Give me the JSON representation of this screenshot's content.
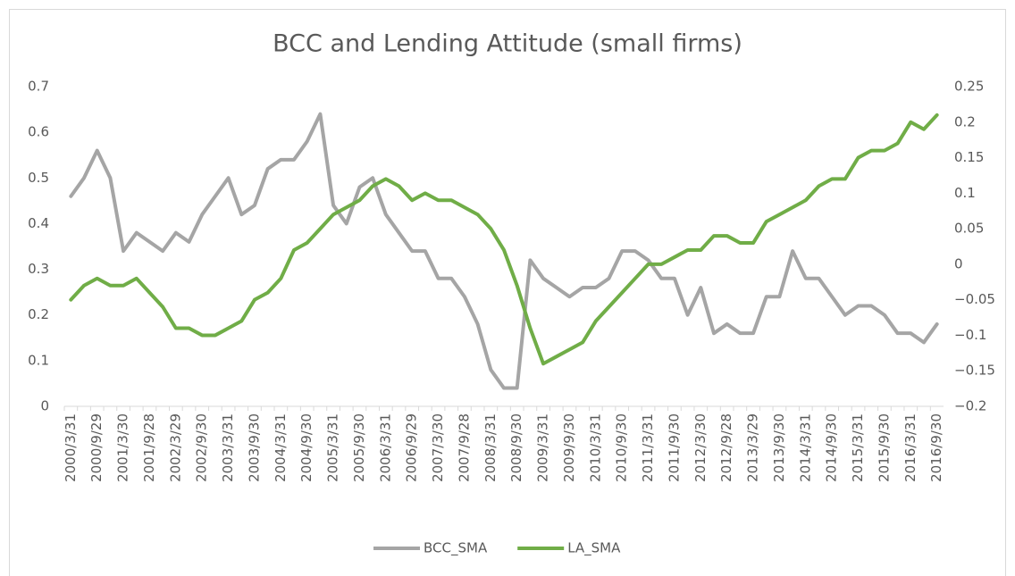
{
  "chart_data": {
    "type": "line",
    "title": "BCC and Lending Attitude (small firms)",
    "categories": [
      "2000/3/31",
      null,
      "2000/9/29",
      null,
      "2001/3/30",
      null,
      "2001/9/28",
      null,
      "2002/3/29",
      null,
      "2002/9/30",
      null,
      "2003/3/31",
      null,
      "2003/9/30",
      null,
      "2004/3/31",
      null,
      "2004/9/30",
      null,
      "2005/3/31",
      null,
      "2005/9/30",
      null,
      "2006/3/31",
      null,
      "2006/9/29",
      null,
      "2007/3/30",
      null,
      "2007/9/28",
      null,
      "2008/3/31",
      null,
      "2008/9/30",
      null,
      "2009/3/31",
      null,
      "2009/9/30",
      null,
      "2010/3/31",
      null,
      "2010/9/30",
      null,
      "2011/3/31",
      null,
      "2011/9/30",
      null,
      "2012/3/30",
      null,
      "2012/9/28",
      null,
      "2013/3/29",
      null,
      "2013/9/30",
      null,
      "2014/3/31",
      null,
      "2014/9/30",
      null,
      "2015/3/31",
      null,
      "2015/9/30",
      null,
      "2016/3/31",
      null,
      "2016/9/30"
    ],
    "series": [
      {
        "name": "BCC_SMA",
        "color": "#a5a5a5",
        "values": [
          0.46,
          0.5,
          0.56,
          0.5,
          0.34,
          0.38,
          0.36,
          0.34,
          0.38,
          0.36,
          0.42,
          0.46,
          0.5,
          0.42,
          0.44,
          0.52,
          0.54,
          0.54,
          0.58,
          0.64,
          0.44,
          0.4,
          0.48,
          0.5,
          0.42,
          0.38,
          0.34,
          0.34,
          0.28,
          0.28,
          0.24,
          0.18,
          0.08,
          0.04,
          0.04,
          0.32,
          0.28,
          0.26,
          0.24,
          0.26,
          0.26,
          0.28,
          0.34,
          0.34,
          0.32,
          0.28,
          0.28,
          0.2,
          0.26,
          0.16,
          0.18,
          0.16,
          0.16,
          0.24,
          0.24,
          0.34,
          0.28,
          0.28,
          0.24,
          0.2,
          0.22,
          0.22,
          0.2,
          0.16,
          0.16,
          0.14,
          0.18
        ]
      },
      {
        "name": "LA_SMA",
        "color": "#70ad47",
        "axis": "y2",
        "values": [
          -0.05,
          -0.03,
          -0.02,
          -0.03,
          -0.03,
          -0.02,
          -0.04,
          -0.06,
          -0.09,
          -0.09,
          -0.1,
          -0.1,
          -0.09,
          -0.08,
          -0.05,
          -0.04,
          -0.02,
          0.02,
          0.03,
          0.05,
          0.07,
          0.08,
          0.09,
          0.11,
          0.12,
          0.11,
          0.09,
          0.1,
          0.09,
          0.09,
          0.08,
          0.07,
          0.05,
          0.02,
          -0.03,
          -0.09,
          -0.14,
          -0.13,
          -0.12,
          -0.11,
          -0.08,
          -0.06,
          -0.04,
          -0.02,
          0,
          0,
          0.01,
          0.02,
          0.02,
          0.04,
          0.04,
          0.03,
          0.03,
          0.06,
          0.07,
          0.08,
          0.09,
          0.11,
          0.12,
          0.12,
          0.15,
          0.16,
          0.16,
          0.17,
          0.2,
          0.19,
          0.21
        ]
      }
    ],
    "ylim": [
      0,
      0.7
    ],
    "yticks": [
      0,
      0.1,
      0.2,
      0.3,
      0.4,
      0.5,
      0.6,
      0.7
    ],
    "y2lim": [
      -0.2,
      0.25
    ],
    "y2ticks": [
      {
        "value": -0.2,
        "label": "−0.2"
      },
      {
        "value": -0.15,
        "label": "−0.15"
      },
      {
        "value": -0.1,
        "label": "−0.1"
      },
      {
        "value": -0.05,
        "label": "−0.05"
      },
      0,
      0.05,
      0.1,
      0.15,
      0.2,
      0.25
    ],
    "grid": false,
    "legend": "bottom"
  }
}
